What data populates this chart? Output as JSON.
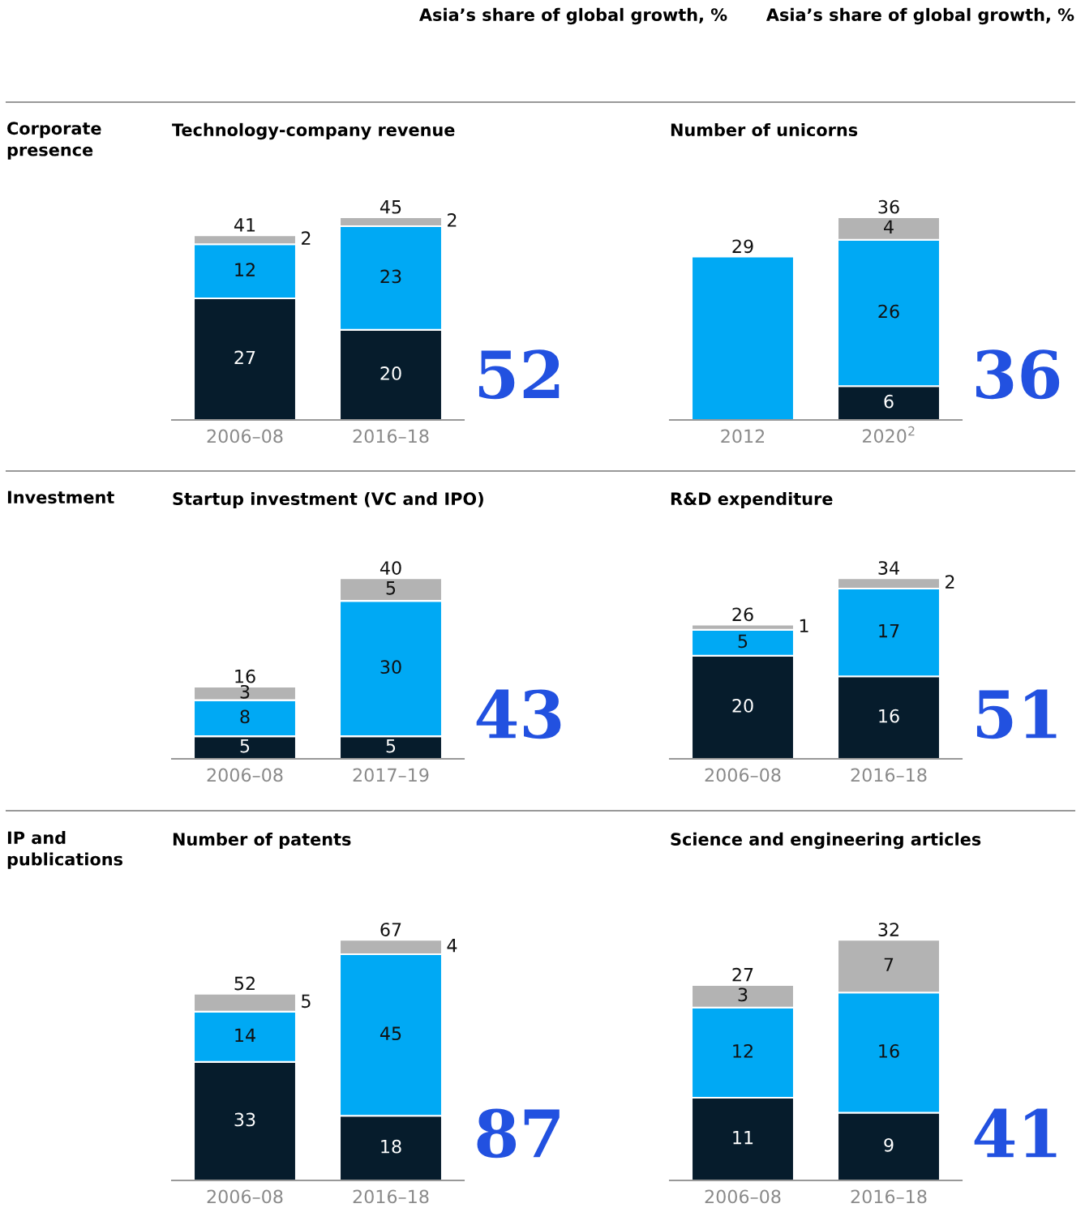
{
  "chart_data": [
    {
      "type": "bar",
      "stacked": true,
      "data_labels": true,
      "title": "Technology-company revenue",
      "categories": [
        "2006–08",
        "2016–18"
      ],
      "totals": [
        "41",
        "45"
      ],
      "series": [
        {
          "color": "#061c2c",
          "values": [
            27,
            20
          ]
        },
        {
          "color": "#00a9f4",
          "values": [
            12,
            23
          ]
        },
        {
          "color": "#b3b3b3",
          "values": [
            2,
            2
          ]
        }
      ],
      "annotations": [
        "52",
        "Asia’s share of global growth, %",
        "Corporate presence"
      ]
    },
    {
      "type": "bar",
      "stacked": true,
      "title": "Number of unicorns",
      "categories": [
        "2012",
        "2020$^{2}$"
      ],
      "totals": [
        "29",
        "36"
      ],
      "series": [
        {
          "color": "#061c2c",
          "values": [
            null,
            6
          ],
          "value_labels": [
            null,
            "6"
          ]
        },
        {
          "color": "#00a9f4",
          "values": [
            29,
            26
          ],
          "value_labels": [
            null,
            "26"
          ]
        },
        {
          "color": "#b3b3b3",
          "values": [
            null,
            4
          ],
          "value_labels": [
            null,
            "4"
          ]
        }
      ],
      "annotations": [
        "36",
        "Asia’s share of global growth, %"
      ]
    },
    {
      "type": "bar",
      "stacked": true,
      "data_labels": true,
      "title": "Startup investment (VC and IPO)",
      "categories": [
        "2006–08",
        "2017–19"
      ],
      "totals": [
        "16",
        "40"
      ],
      "series": [
        {
          "color": "#061c2c",
          "values": [
            5,
            5
          ]
        },
        {
          "color": "#00a9f4",
          "values": [
            8,
            30
          ]
        },
        {
          "color": "#b3b3b3",
          "values": [
            3,
            5
          ]
        }
      ],
      "annotations": [
        "43",
        "Investment"
      ]
    },
    {
      "type": "bar",
      "stacked": true,
      "data_labels": true,
      "title": "R&D expenditure",
      "categories": [
        "2006–08",
        "2016–18"
      ],
      "totals": [
        "26",
        "34"
      ],
      "series": [
        {
          "color": "#061c2c",
          "values": [
            20,
            16
          ]
        },
        {
          "color": "#00a9f4",
          "values": [
            5,
            17
          ]
        },
        {
          "color": "#b3b3b3",
          "values": [
            1,
            2
          ]
        }
      ],
      "annotations": [
        "51"
      ]
    },
    {
      "type": "bar",
      "stacked": true,
      "data_labels": true,
      "title": "Number of patents",
      "categories": [
        "2006–08",
        "2016–18"
      ],
      "totals": [
        "52",
        "67"
      ],
      "series": [
        {
          "color": "#061c2c",
          "values": [
            33,
            18
          ]
        },
        {
          "color": "#00a9f4",
          "values": [
            14,
            45
          ]
        },
        {
          "color": "#b3b3b3",
          "values": [
            5,
            4
          ]
        }
      ],
      "annotations": [
        "87",
        "IP and publications"
      ]
    },
    {
      "type": "bar",
      "stacked": true,
      "data_labels": true,
      "title": "Science and engineering articles",
      "categories": [
        "2006–08",
        "2016–18"
      ],
      "totals": [
        "27",
        "32"
      ],
      "series": [
        {
          "color": "#061c2c",
          "values": [
            11,
            9
          ]
        },
        {
          "color": "#00a9f4",
          "values": [
            12,
            16
          ]
        },
        {
          "color": "#b3b3b3",
          "values": [
            3,
            7
          ]
        }
      ],
      "annotations": [
        "41"
      ]
    }
  ]
}
